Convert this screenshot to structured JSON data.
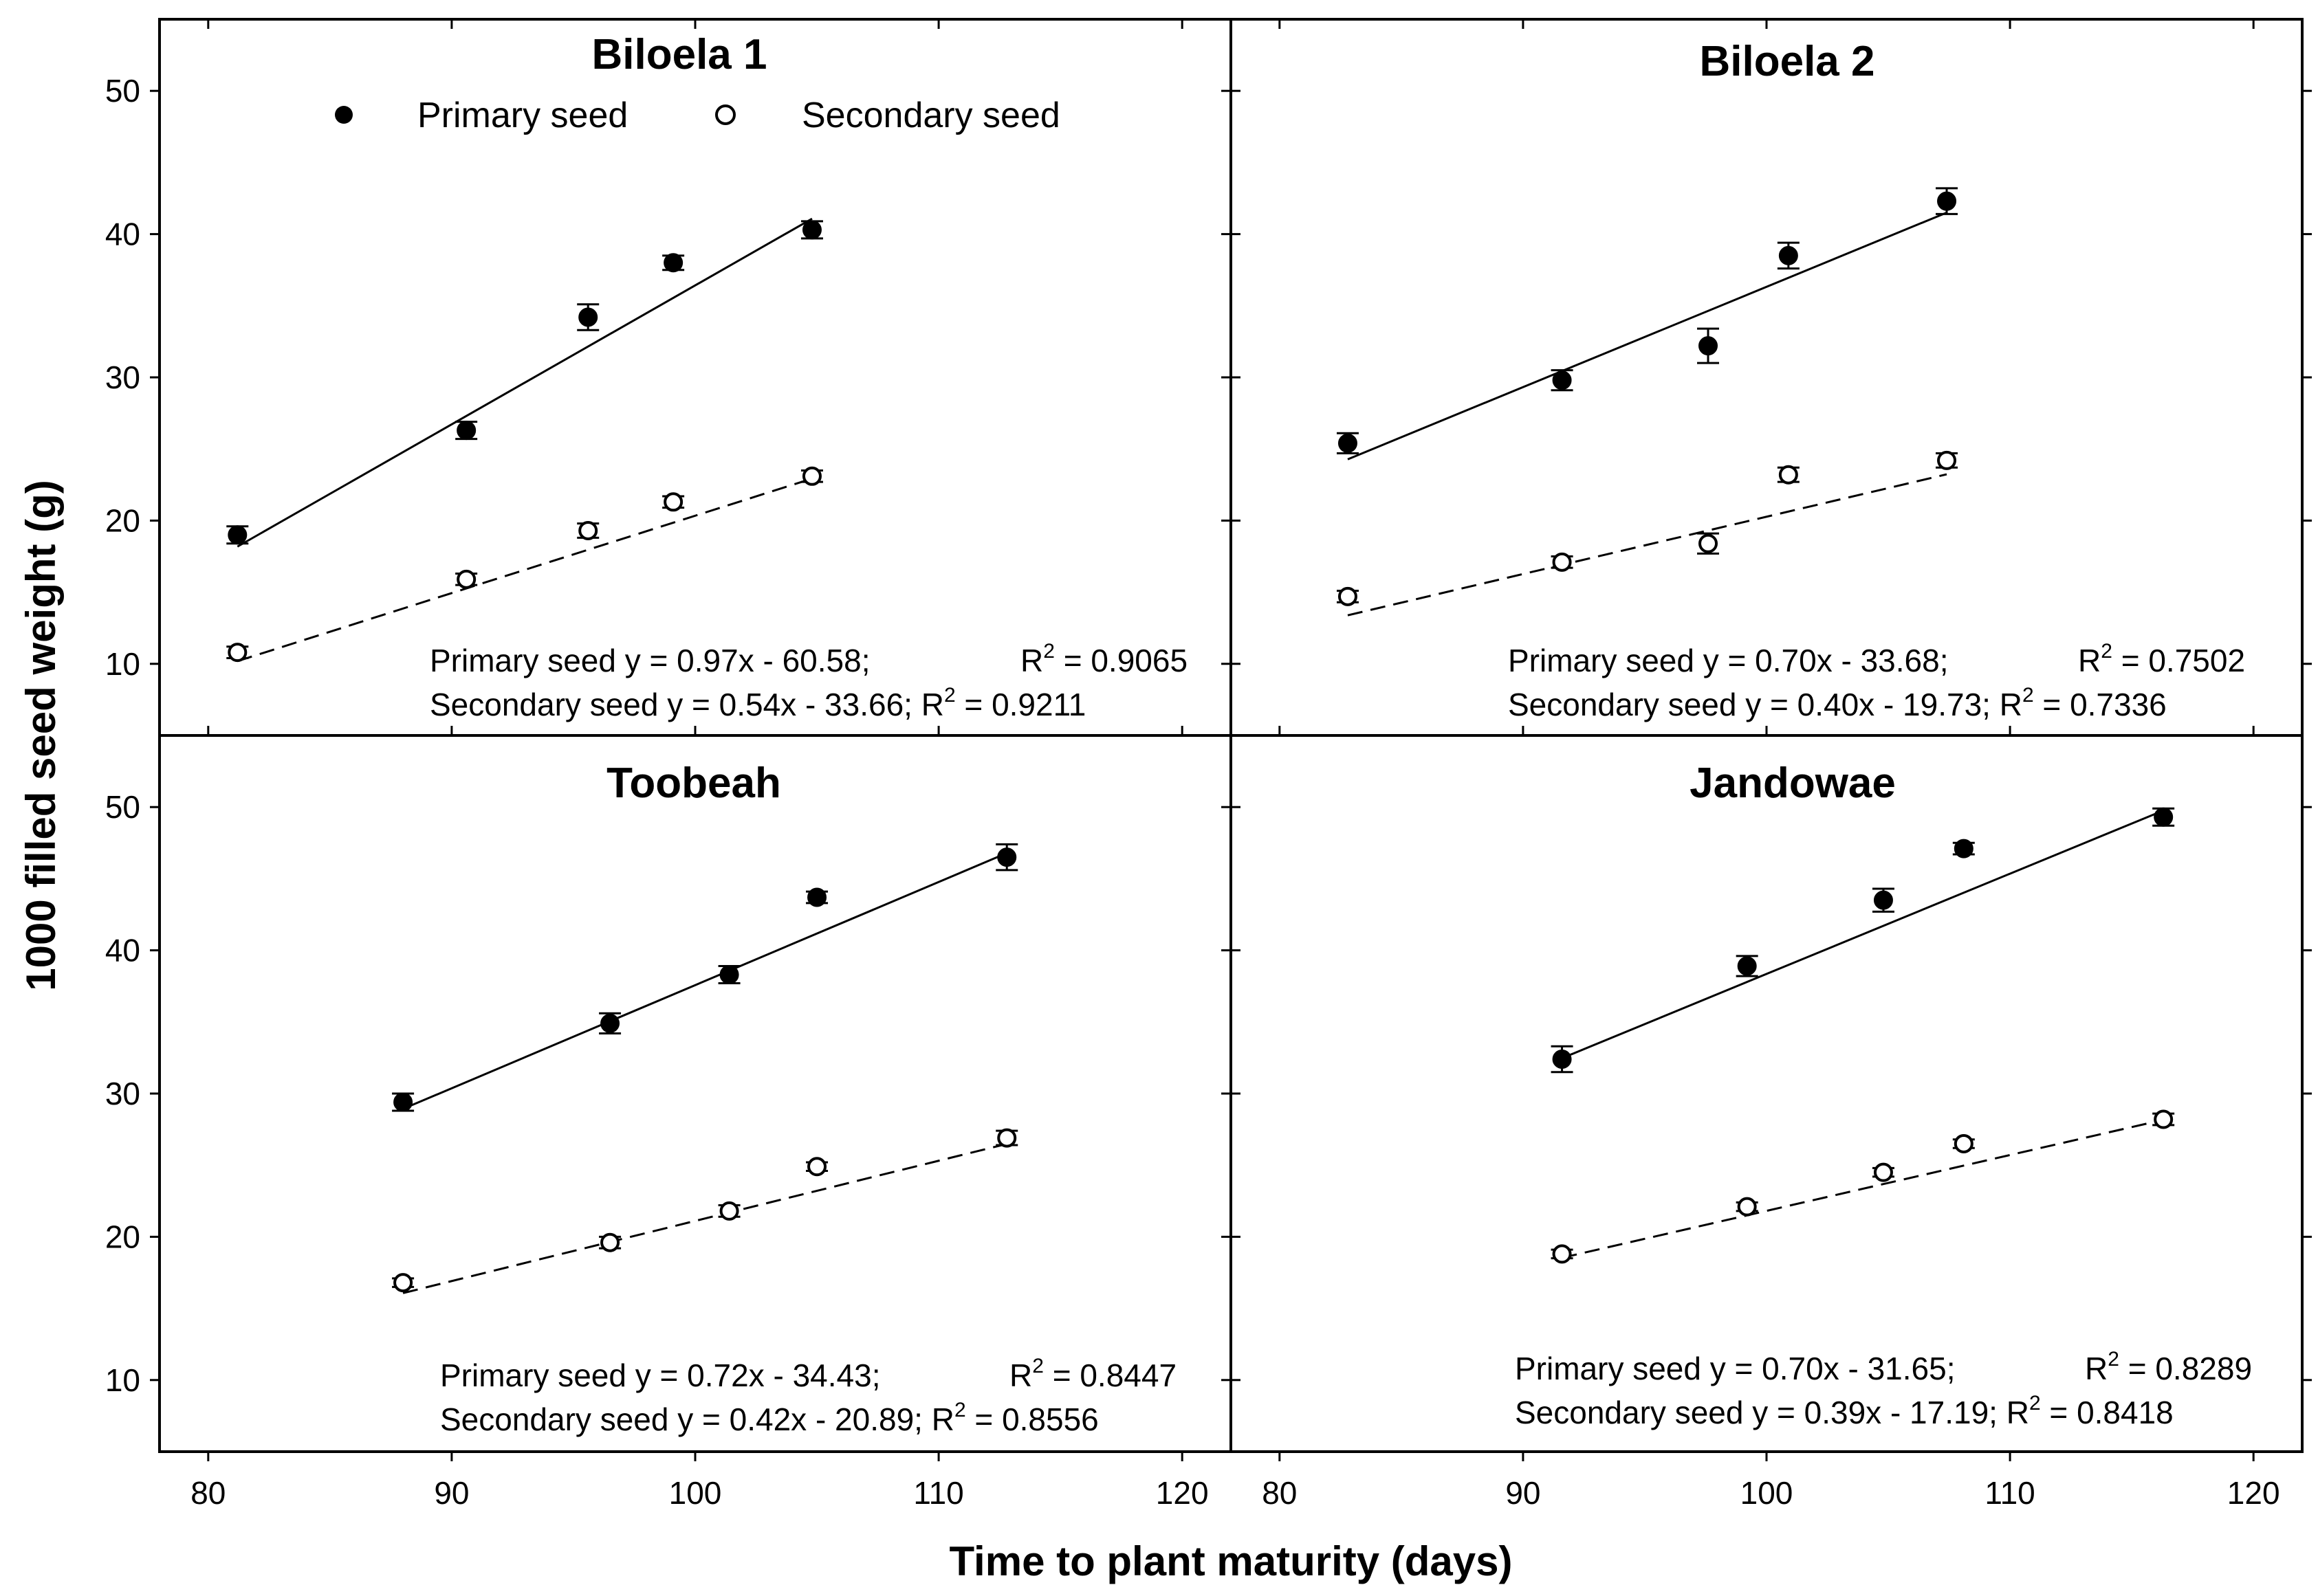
{
  "chart_data": {
    "type": "scatter",
    "xlabel": "Time to plant maturity (days)",
    "ylabel": "1000 filled seed weight (g)",
    "xlim": [
      78,
      122
    ],
    "ylim": [
      5,
      55
    ],
    "xticks": [
      80,
      90,
      100,
      110,
      120
    ],
    "yticks": [
      10,
      20,
      30,
      40,
      50
    ],
    "legend": {
      "position": "top",
      "entries": [
        {
          "name": "Primary seed",
          "marker": "filled-circle"
        },
        {
          "name": "Secondary seed",
          "marker": "open-circle"
        }
      ]
    },
    "panels": [
      {
        "title": "Biloela 1",
        "series": [
          {
            "name": "Primary seed",
            "x": [
              81.2,
              90.6,
              95.6,
              99.1,
              104.8
            ],
            "y": [
              19.0,
              26.3,
              34.2,
              38.0,
              40.3
            ],
            "err": [
              0.6,
              0.6,
              0.9,
              0.5,
              0.6
            ],
            "fit": {
              "slope": 0.97,
              "intercept": -60.58,
              "style": "solid",
              "x_range": [
                81.2,
                104.8
              ]
            }
          },
          {
            "name": "Secondary seed",
            "x": [
              81.2,
              90.6,
              95.6,
              99.1,
              104.8
            ],
            "y": [
              10.8,
              15.9,
              19.3,
              21.3,
              23.1
            ],
            "err": [
              0.4,
              0.4,
              0.5,
              0.4,
              0.4
            ],
            "fit": {
              "slope": 0.54,
              "intercept": -33.66,
              "style": "dashed",
              "x_range": [
                81.2,
                104.8
              ]
            }
          }
        ],
        "equations": {
          "primary": "Primary seed y = 0.97x - 60.58;",
          "primary_r2": " = 0.9065",
          "secondary": "Secondary seed y = 0.54x - 33.66; R",
          "secondary_r2": " = 0.9211"
        }
      },
      {
        "title": "Biloela 2",
        "series": [
          {
            "name": "Primary seed",
            "x": [
              82.8,
              91.6,
              97.6,
              100.9,
              107.4
            ],
            "y": [
              25.4,
              29.8,
              32.2,
              38.5,
              42.3
            ],
            "err": [
              0.7,
              0.7,
              1.2,
              0.9,
              0.9
            ],
            "fit": {
              "slope": 0.7,
              "intercept": -33.68,
              "style": "solid",
              "x_range": [
                82.8,
                107.4
              ]
            }
          },
          {
            "name": "Secondary seed",
            "x": [
              82.8,
              91.6,
              97.6,
              100.9,
              107.4
            ],
            "y": [
              14.7,
              17.1,
              18.4,
              23.2,
              24.2
            ],
            "err": [
              0.4,
              0.4,
              0.7,
              0.5,
              0.5
            ],
            "fit": {
              "slope": 0.4,
              "intercept": -19.73,
              "style": "dashed",
              "x_range": [
                82.8,
                107.4
              ]
            }
          }
        ],
        "equations": {
          "primary": "Primary seed y = 0.70x - 33.68;",
          "primary_r2": " = 0.7502",
          "secondary": "Secondary seed y = 0.40x - 19.73; R",
          "secondary_r2": " = 0.7336"
        }
      },
      {
        "title": "Toobeah",
        "series": [
          {
            "name": "Primary seed",
            "x": [
              88.0,
              96.5,
              101.4,
              105.0,
              112.8
            ],
            "y": [
              29.4,
              34.9,
              38.3,
              43.7,
              46.5
            ],
            "err": [
              0.6,
              0.7,
              0.6,
              0.4,
              0.9
            ],
            "fit": {
              "slope": 0.72,
              "intercept": -34.43,
              "style": "solid",
              "x_range": [
                88.0,
                112.8
              ]
            }
          },
          {
            "name": "Secondary seed",
            "x": [
              88.0,
              96.5,
              101.4,
              105.0,
              112.8
            ],
            "y": [
              16.8,
              19.6,
              21.8,
              24.9,
              26.9
            ],
            "err": [
              0.3,
              0.4,
              0.4,
              0.3,
              0.5
            ],
            "fit": {
              "slope": 0.42,
              "intercept": -20.89,
              "style": "dashed",
              "x_range": [
                88.0,
                112.8
              ]
            }
          }
        ],
        "equations": {
          "primary": "Primary seed y = 0.72x - 34.43;",
          "primary_r2": " = 0.8447",
          "secondary": "Secondary seed y = 0.42x - 20.89; R",
          "secondary_r2": " = 0.8556"
        }
      },
      {
        "title": "Jandowae",
        "series": [
          {
            "name": "Primary seed",
            "x": [
              91.6,
              99.2,
              104.8,
              108.1,
              116.3
            ],
            "y": [
              32.4,
              38.9,
              43.5,
              47.1,
              49.3
            ],
            "err": [
              0.9,
              0.7,
              0.8,
              0.4,
              0.6
            ],
            "fit": {
              "slope": 0.7,
              "intercept": -31.65,
              "style": "solid",
              "x_range": [
                91.6,
                116.3
              ]
            }
          },
          {
            "name": "Secondary seed",
            "x": [
              91.6,
              99.2,
              104.8,
              108.1,
              116.3
            ],
            "y": [
              18.8,
              22.1,
              24.5,
              26.5,
              28.2
            ],
            "err": [
              0.3,
              0.3,
              0.3,
              0.3,
              0.4
            ],
            "fit": {
              "slope": 0.39,
              "intercept": -17.19,
              "style": "dashed",
              "x_range": [
                91.6,
                116.3
              ]
            }
          }
        ],
        "equations": {
          "primary": "Primary seed y = 0.70x - 31.65;",
          "primary_r2": " = 0.8289",
          "secondary": "Secondary seed y = 0.39x - 17.19; R",
          "secondary_r2": " = 0.8418"
        }
      }
    ],
    "r_label": "R",
    "r_superscript": "2"
  }
}
